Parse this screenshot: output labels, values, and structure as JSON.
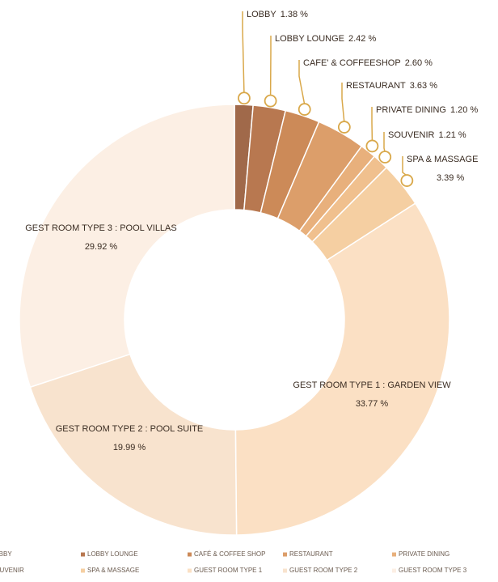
{
  "chart_data": {
    "type": "donut",
    "categories": [
      "LOBBY",
      "LOBBY LOUNGE",
      "CAFÉ & COFFEE SHOP",
      "RESTAURANT",
      "PRIVATE DINING",
      "SOUVENIR",
      "SPA & MASSAGE",
      "GUEST ROOM TYPE 1",
      "GUEST ROOM TYPE 2",
      "GUEST ROOM TYPE 3"
    ],
    "slice_labels": [
      "LOBBY",
      "LOBBY LOUNGE",
      "CAFE' & COFFEESHOP",
      "RESTAURANT",
      "PRIVATE DINING",
      "SOUVENIR",
      "SPA & MASSAGE",
      "GEST ROOM TYPE 1 : GARDEN VIEW",
      "GEST ROOM TYPE 2 : POOL SUITE",
      "GEST ROOM TYPE 3 : POOL VILLAS"
    ],
    "values": [
      1.38,
      2.42,
      2.6,
      3.63,
      1.2,
      1.21,
      3.39,
      33.77,
      19.99,
      29.92
    ],
    "value_labels": [
      "1.38 %",
      "2.42 %",
      "2.60 %",
      "3.63 %",
      "1.20 %",
      "1.21 %",
      "3.39 %",
      "33.77 %",
      "19.99 %",
      "29.92 %"
    ],
    "colors": [
      "#a0694a",
      "#b87850",
      "#cc8a58",
      "#dc9e6a",
      "#e8b07c",
      "#f0c08e",
      "#f5cfa2",
      "#fbe0c4",
      "#f8e3ce",
      "#fcefe4"
    ],
    "legend": "bottom"
  }
}
